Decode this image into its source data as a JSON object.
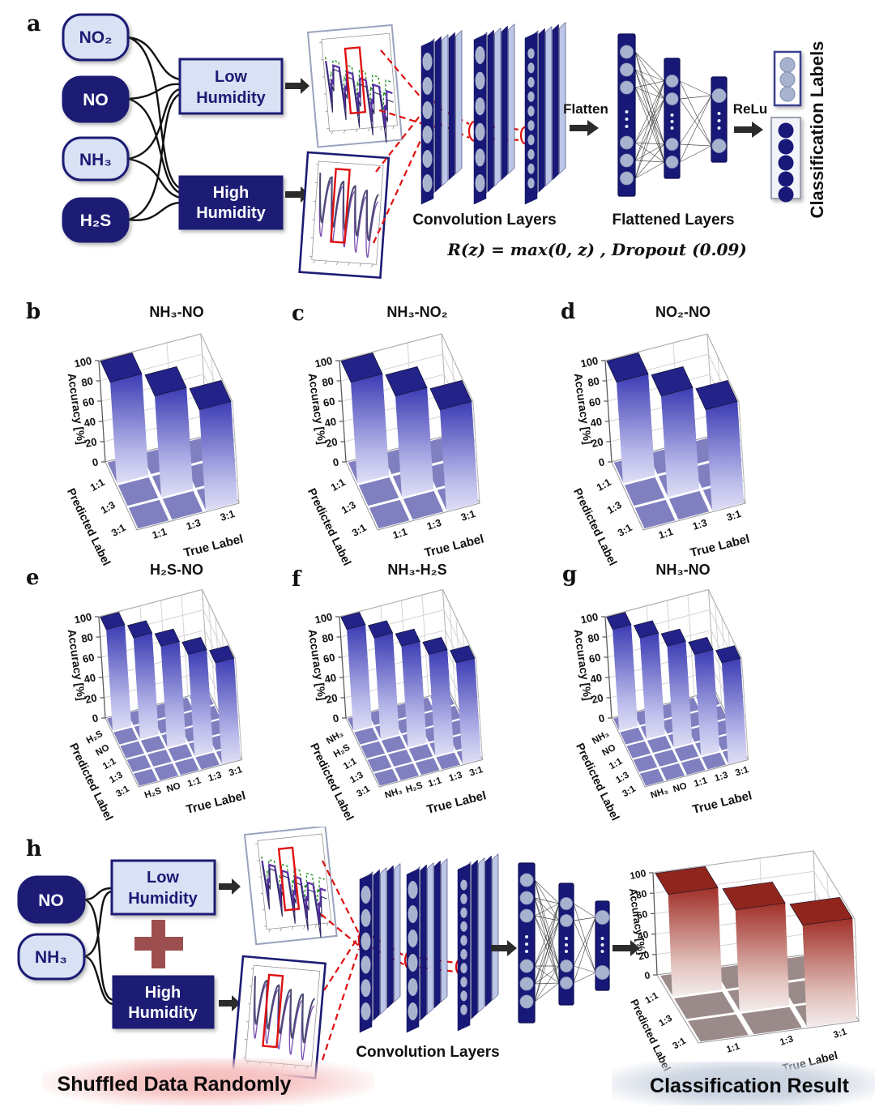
{
  "figure": {
    "panels": [
      "a",
      "b",
      "c",
      "d",
      "e",
      "f",
      "g",
      "h"
    ]
  },
  "panel_a": {
    "label": "a",
    "gases": [
      {
        "text": "NO₂",
        "variant": "light"
      },
      {
        "text": "NO",
        "variant": "dark"
      },
      {
        "text": "NH₃",
        "variant": "light"
      },
      {
        "text": "H₂S",
        "variant": "dark"
      }
    ],
    "humidity_boxes": [
      {
        "line1": "Low",
        "line2": "Humidity",
        "variant": "light"
      },
      {
        "line1": "High",
        "line2": "Humidity",
        "variant": "dark"
      }
    ],
    "flatten_label": "Flatten",
    "conv_layers_label": "Convolution Layers",
    "flattened_layers_label": "Flattened Layers",
    "relu_label": "ReLu",
    "classification_labels_text": "Classification Labels",
    "activation_formula": "R(z) = max(0, z) , Dropout (0.09)"
  },
  "panel_h": {
    "label": "h",
    "gases": [
      {
        "text": "NO",
        "variant": "dark"
      },
      {
        "text": "NH₃",
        "variant": "light"
      }
    ],
    "humidity_boxes": [
      {
        "line1": "Low",
        "line2": "Humidity",
        "variant": "light"
      },
      {
        "line1": "High",
        "line2": "Humidity",
        "variant": "dark"
      }
    ],
    "conv_layers_label": "Convolution Layers",
    "shuffled_text": "Shuffled Data Randomly",
    "classification_result_text": "Classification Result"
  },
  "chart_data": [
    {
      "panel": "b",
      "type": "bar",
      "variant": "3d-diagonal",
      "title": "NH₃-NO",
      "zlabel": "Accuracy [%]",
      "xlabel": "True Label",
      "ylabel": "Predicted Label",
      "categories_true": [
        "1:1",
        "1:3",
        "3:1"
      ],
      "categories_predicted": [
        "1:1",
        "1:3",
        "3:1"
      ],
      "diagonal_values": [
        100,
        100,
        100
      ],
      "off_diagonal_value": 0,
      "zlim": [
        0,
        100
      ],
      "zticks": [
        0,
        20,
        40,
        60,
        80,
        100
      ],
      "grid": true,
      "theme": "blue"
    },
    {
      "panel": "c",
      "type": "bar",
      "variant": "3d-diagonal",
      "title": "NH₃-NO₂",
      "zlabel": "Accuracy [%]",
      "xlabel": "True Label",
      "ylabel": "Predicted Label",
      "categories_true": [
        "1:1",
        "1:3",
        "3:1"
      ],
      "categories_predicted": [
        "1:1",
        "1:3",
        "3:1"
      ],
      "diagonal_values": [
        100,
        100,
        100
      ],
      "off_diagonal_value": 0,
      "zlim": [
        0,
        100
      ],
      "zticks": [
        0,
        20,
        40,
        60,
        80,
        100
      ],
      "grid": true,
      "theme": "blue"
    },
    {
      "panel": "d",
      "type": "bar",
      "variant": "3d-diagonal",
      "title": "NO₂-NO",
      "zlabel": "Accuracy [%]",
      "xlabel": "True Label",
      "ylabel": "Predicted Label",
      "categories_true": [
        "1:1",
        "1:3",
        "3:1"
      ],
      "categories_predicted": [
        "1:1",
        "1:3",
        "3:1"
      ],
      "diagonal_values": [
        100,
        100,
        100
      ],
      "off_diagonal_value": 0,
      "zlim": [
        0,
        100
      ],
      "zticks": [
        0,
        20,
        40,
        60,
        80,
        100
      ],
      "grid": true,
      "theme": "blue"
    },
    {
      "panel": "e",
      "type": "bar",
      "variant": "3d-diagonal",
      "title": "H₂S-NO",
      "zlabel": "Accuracy [%]",
      "xlabel": "True Label",
      "ylabel": "Predicted Label",
      "categories_true": [
        "H₂S",
        "NO",
        "1:1",
        "1:3",
        "3:1"
      ],
      "categories_predicted": [
        "H₂S",
        "NO",
        "1:1",
        "1:3",
        "3:1"
      ],
      "diagonal_values": [
        100,
        100,
        100,
        100,
        100
      ],
      "off_diagonal_value": 0,
      "zlim": [
        0,
        100
      ],
      "zticks": [
        0,
        20,
        40,
        60,
        80,
        100
      ],
      "grid": true,
      "theme": "blue"
    },
    {
      "panel": "f",
      "type": "bar",
      "variant": "3d-diagonal",
      "title": "NH₃-H₂S",
      "zlabel": "Accuracy [%]",
      "xlabel": "True Label",
      "ylabel": "Predicted Label",
      "categories_true": [
        "NH₃",
        "H₂S",
        "1:1",
        "1:3",
        "3:1"
      ],
      "categories_predicted": [
        "NH₃",
        "H₂S",
        "1:1",
        "1:3",
        "3:1"
      ],
      "diagonal_values": [
        100,
        100,
        100,
        100,
        100
      ],
      "off_diagonal_value": 0,
      "zlim": [
        0,
        100
      ],
      "zticks": [
        0,
        20,
        40,
        60,
        80,
        100
      ],
      "grid": true,
      "theme": "blue"
    },
    {
      "panel": "g",
      "type": "bar",
      "variant": "3d-diagonal",
      "title": "NH₃-NO",
      "zlabel": "Accuracy [%]",
      "xlabel": "True Label",
      "ylabel": "Predicted Label",
      "categories_true": [
        "NH₃",
        "NO",
        "1:1",
        "1:3",
        "3:1"
      ],
      "categories_predicted": [
        "NH₃",
        "NO",
        "1:1",
        "1:3",
        "3:1"
      ],
      "diagonal_values": [
        100,
        100,
        100,
        100,
        100
      ],
      "off_diagonal_value": 0,
      "zlim": [
        0,
        100
      ],
      "zticks": [
        0,
        20,
        40,
        60,
        80,
        100
      ],
      "grid": true,
      "theme": "blue"
    },
    {
      "panel": "h",
      "type": "bar",
      "variant": "3d-diagonal",
      "title": "",
      "zlabel": "Accuracy [%]",
      "xlabel": "True Label",
      "ylabel": "Predicted Label",
      "categories_true": [
        "1:1",
        "1:3",
        "3:1"
      ],
      "categories_predicted": [
        "1:1",
        "1:3",
        "3:1"
      ],
      "diagonal_values": [
        100,
        100,
        100
      ],
      "off_diagonal_value": 0,
      "zlim": [
        0,
        100
      ],
      "zticks": [
        0,
        20,
        40,
        60,
        80,
        100
      ],
      "grid": true,
      "theme": "red"
    }
  ],
  "colors": {
    "navy": "#1b1b74",
    "light_node_fill": "#d9e1f4",
    "bar_blue_front": "#3c3cb4",
    "bar_blue_top": "#222288",
    "bar_red_front": "#a03028",
    "bar_red_top": "#8f251d",
    "floor_blue": "#8080c0",
    "floor_red": "#9b8a8a",
    "red_dashed": "#e01010",
    "plus_maroon": "#9d4f4f",
    "neuron_grey": "#a7b2ce",
    "band_pink": "#f2b4b4",
    "band_steel": "#c2cbd9"
  }
}
